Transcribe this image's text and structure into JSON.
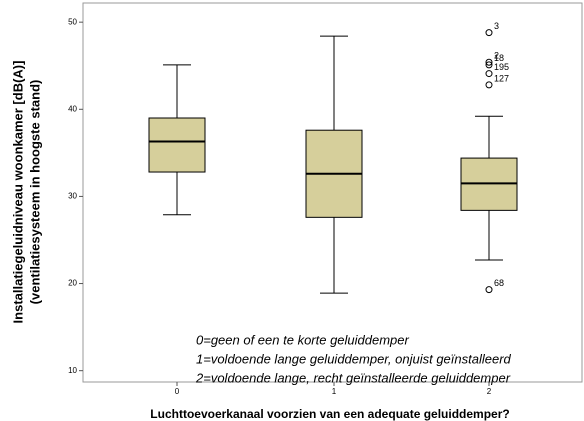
{
  "chart_data": {
    "type": "box",
    "xlabel": "Luchttoevoerkanaal voorzien van een adequate geluiddemper?",
    "ylabel": [
      "Installatiegeluidniveau woonkamer [dB(A)]",
      "(ventilatiesysteem in hoogste stand)"
    ],
    "categories": [
      "0",
      "1",
      "2"
    ],
    "color": "#d6cf9b",
    "boxes": [
      {
        "low": 27.9,
        "q1": 32.8,
        "median": 36.3,
        "q3": 39.0,
        "high": 45.1,
        "outliers": []
      },
      {
        "low": 18.9,
        "q1": 27.6,
        "median": 32.6,
        "q3": 37.6,
        "high": 48.4,
        "outliers": []
      },
      {
        "low": 22.7,
        "q1": 28.4,
        "median": 31.5,
        "q3": 34.4,
        "high": 39.2,
        "outliers": [
          {
            "value": 48.8,
            "label": "3"
          },
          {
            "value": 45.4,
            "label": "2"
          },
          {
            "value": 45.1,
            "label": "18"
          },
          {
            "value": 44.1,
            "label": "195"
          },
          {
            "value": 42.8,
            "label": "127"
          },
          {
            "value": 19.3,
            "label": "68"
          }
        ]
      }
    ],
    "annotation": [
      "0=geen of een te korte geluiddemper",
      "1=voldoende lange geluiddemper, onjuist geïnstalleerd",
      "2=voldoende lange, recht geïnstalleerde geluiddemper"
    ],
    "ylim": [
      8.7,
      52.2
    ],
    "yticks": [
      10,
      20,
      30,
      40,
      50
    ]
  }
}
